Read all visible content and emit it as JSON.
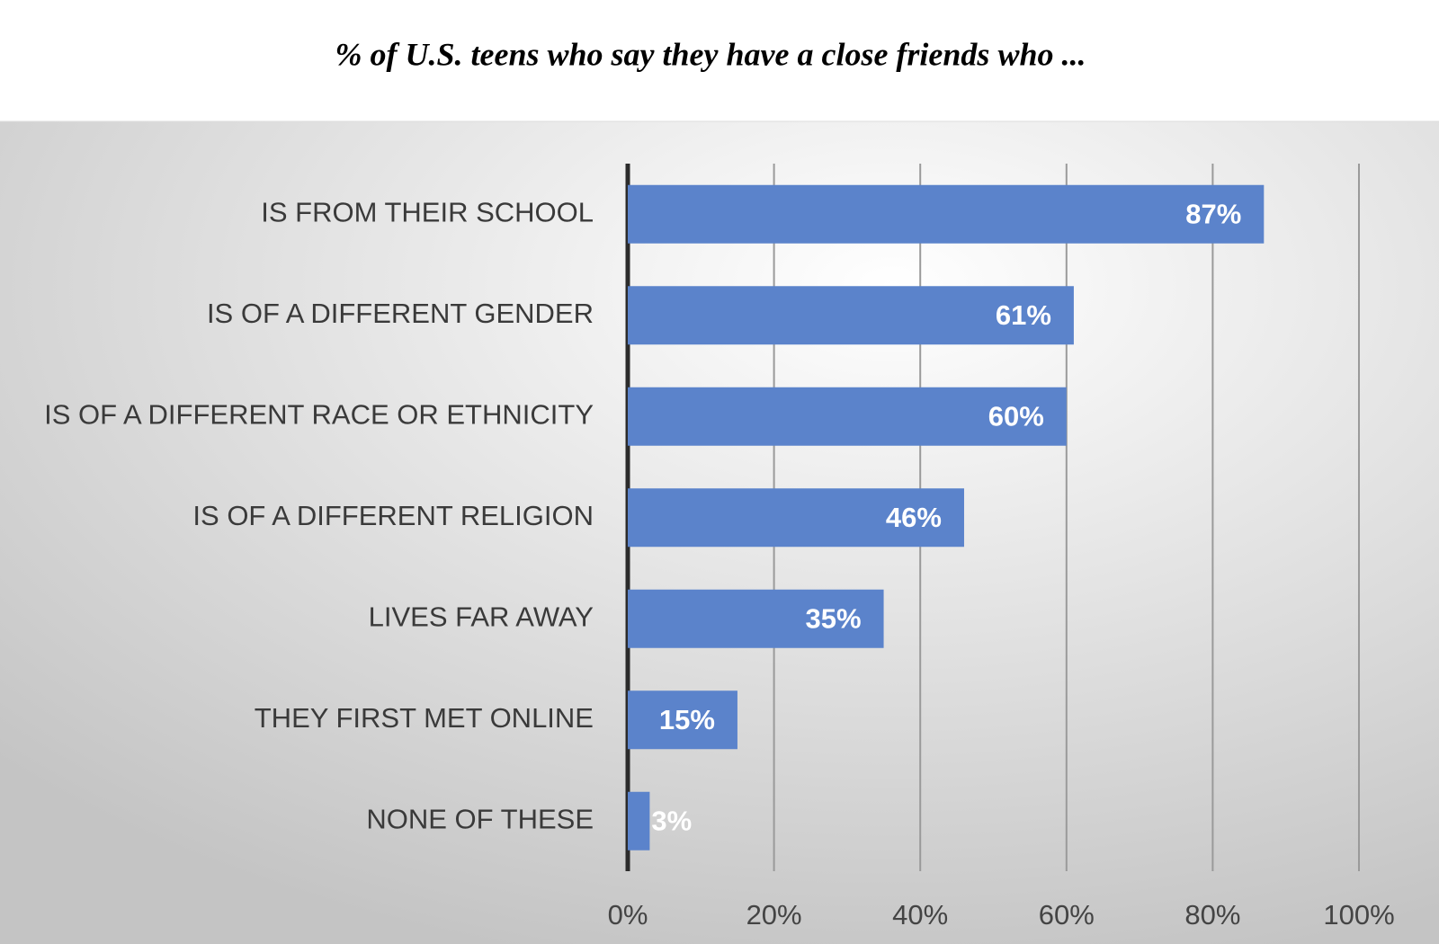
{
  "chart_data": {
    "type": "bar",
    "title": "% of U.S. teens who say they have a close friends who ...",
    "categories": [
      "IS FROM THEIR SCHOOL",
      "IS OF A DIFFERENT GENDER",
      "IS OF A DIFFERENT RACE OR ETHNICITY",
      "IS OF A DIFFERENT RELIGION",
      "LIVES FAR AWAY",
      "THEY FIRST MET ONLINE",
      "NONE OF THESE"
    ],
    "values": [
      87,
      61,
      60,
      46,
      35,
      15,
      3
    ],
    "value_labels": [
      "87%",
      "61%",
      "60%",
      "46%",
      "35%",
      "15%",
      "3%"
    ],
    "color": "#5b83cb",
    "xlim": [
      0,
      100
    ],
    "xticks": [
      {
        "value": 0,
        "label": "0%"
      },
      {
        "value": 20,
        "label": "20%"
      },
      {
        "value": 40,
        "label": "40%"
      },
      {
        "value": 60,
        "label": "60%"
      },
      {
        "value": 80,
        "label": "80%"
      },
      {
        "value": 100,
        "label": "100%"
      }
    ],
    "grid": true
  }
}
